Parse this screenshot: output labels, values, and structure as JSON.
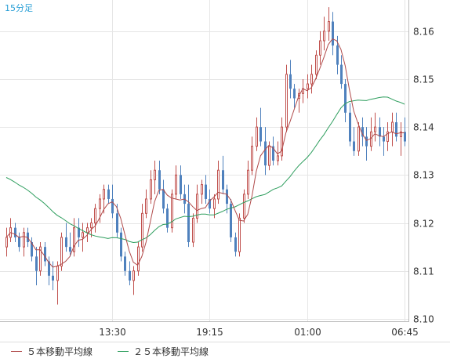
{
  "chart_data": {
    "type": "candlestick",
    "timeframe_label": "15分足",
    "x_tick_labels": [
      "13:30",
      "19:15",
      "01:00",
      "06:45"
    ],
    "y_tick_labels": [
      "8.16",
      "8.15",
      "8.14",
      "8.13",
      "8.12",
      "8.11",
      "8.10"
    ],
    "y_ticks": [
      8.16,
      8.15,
      8.14,
      8.13,
      8.12,
      8.11,
      8.1
    ],
    "ylim": [
      8.0995,
      8.1665
    ],
    "x_ticks": [
      {
        "index": 25,
        "label": "13:30"
      },
      {
        "index": 48,
        "label": "19:15"
      },
      {
        "index": 71,
        "label": "01:00"
      },
      {
        "index": 94,
        "label": "06:45"
      }
    ],
    "grid": true,
    "legend_position": "bottom",
    "colors": {
      "up": "#c0504d",
      "down": "#4f81bd",
      "ma5": "#b04a4a",
      "ma25": "#2e9e5e",
      "grid": "#e6e6e6",
      "axis": "#bbbbbb"
    },
    "series": [
      {
        "name": "5本移動平均線",
        "kind": "sma",
        "period": 5,
        "color": "#b04a4a"
      },
      {
        "name": "25本移動平均線",
        "kind": "sma",
        "period": 25,
        "color": "#2e9e5e"
      }
    ],
    "legend": [
      {
        "label": "５本移動平均線",
        "color": "#b04a4a"
      },
      {
        "label": "２５本移動平均線",
        "color": "#2e9e5e"
      }
    ],
    "ma25_start": 8.13,
    "candles": [
      [
        8.115,
        8.119,
        8.113,
        8.117
      ],
      [
        8.117,
        8.121,
        8.116,
        8.119
      ],
      [
        8.119,
        8.12,
        8.116,
        8.117
      ],
      [
        8.117,
        8.118,
        8.114,
        8.115
      ],
      [
        8.115,
        8.119,
        8.113,
        8.118
      ],
      [
        8.118,
        8.119,
        8.115,
        8.116
      ],
      [
        8.116,
        8.117,
        8.112,
        8.113
      ],
      [
        8.113,
        8.115,
        8.107,
        8.11
      ],
      [
        8.11,
        8.116,
        8.109,
        8.115
      ],
      [
        8.115,
        8.116,
        8.111,
        8.112
      ],
      [
        8.112,
        8.113,
        8.107,
        8.109
      ],
      [
        8.109,
        8.112,
        8.106,
        8.108
      ],
      [
        8.108,
        8.112,
        8.103,
        8.111
      ],
      [
        8.111,
        8.118,
        8.11,
        8.117
      ],
      [
        8.117,
        8.12,
        8.114,
        8.115
      ],
      [
        8.115,
        8.118,
        8.113,
        8.114
      ],
      [
        8.114,
        8.121,
        8.113,
        8.119
      ],
      [
        8.119,
        8.121,
        8.115,
        8.117
      ],
      [
        8.117,
        8.12,
        8.114,
        8.118
      ],
      [
        8.118,
        8.12,
        8.116,
        8.119
      ],
      [
        8.119,
        8.121,
        8.117,
        8.12
      ],
      [
        8.12,
        8.124,
        8.118,
        8.123
      ],
      [
        8.123,
        8.126,
        8.12,
        8.125
      ],
      [
        8.125,
        8.128,
        8.122,
        8.127
      ],
      [
        8.127,
        8.128,
        8.124,
        8.125
      ],
      [
        8.125,
        8.128,
        8.121,
        8.122
      ],
      [
        8.122,
        8.124,
        8.117,
        8.118
      ],
      [
        8.118,
        8.119,
        8.112,
        8.113
      ],
      [
        8.113,
        8.114,
        8.109,
        8.11
      ],
      [
        8.11,
        8.112,
        8.107,
        8.108
      ],
      [
        8.108,
        8.111,
        8.105,
        8.11
      ],
      [
        8.11,
        8.116,
        8.109,
        8.115
      ],
      [
        8.115,
        8.124,
        8.114,
        8.122
      ],
      [
        8.122,
        8.127,
        8.121,
        8.125
      ],
      [
        8.125,
        8.131,
        8.124,
        8.129
      ],
      [
        8.129,
        8.133,
        8.126,
        8.131
      ],
      [
        8.131,
        8.133,
        8.126,
        8.127
      ],
      [
        8.127,
        8.129,
        8.122,
        8.123
      ],
      [
        8.123,
        8.124,
        8.118,
        8.119
      ],
      [
        8.119,
        8.127,
        8.118,
        8.126
      ],
      [
        8.126,
        8.132,
        8.125,
        8.13
      ],
      [
        8.13,
        8.132,
        8.125,
        8.126
      ],
      [
        8.126,
        8.128,
        8.122,
        8.124
      ],
      [
        8.124,
        8.128,
        8.115,
        8.116
      ],
      [
        8.116,
        8.122,
        8.115,
        8.121
      ],
      [
        8.121,
        8.128,
        8.12,
        8.126
      ],
      [
        8.126,
        8.129,
        8.124,
        8.128
      ],
      [
        8.128,
        8.13,
        8.124,
        8.125
      ],
      [
        8.125,
        8.127,
        8.122,
        8.123
      ],
      [
        8.123,
        8.126,
        8.121,
        8.125
      ],
      [
        8.125,
        8.133,
        8.124,
        8.131
      ],
      [
        8.131,
        8.134,
        8.126,
        8.127
      ],
      [
        8.127,
        8.128,
        8.122,
        8.124
      ],
      [
        8.124,
        8.125,
        8.116,
        8.117
      ],
      [
        8.117,
        8.118,
        8.113,
        8.114
      ],
      [
        8.114,
        8.122,
        8.113,
        8.121
      ],
      [
        8.121,
        8.127,
        8.12,
        8.126
      ],
      [
        8.126,
        8.133,
        8.125,
        8.131
      ],
      [
        8.131,
        8.138,
        8.13,
        8.136
      ],
      [
        8.136,
        8.142,
        8.135,
        8.14
      ],
      [
        8.14,
        8.144,
        8.136,
        8.137
      ],
      [
        8.137,
        8.14,
        8.13,
        8.132
      ],
      [
        8.132,
        8.137,
        8.131,
        8.136
      ],
      [
        8.136,
        8.138,
        8.132,
        8.133
      ],
      [
        8.133,
        8.137,
        8.132,
        8.134
      ],
      [
        8.134,
        8.142,
        8.133,
        8.14
      ],
      [
        8.14,
        8.153,
        8.139,
        8.151
      ],
      [
        8.151,
        8.154,
        8.146,
        8.148
      ],
      [
        8.148,
        8.149,
        8.144,
        8.146
      ],
      [
        8.146,
        8.148,
        8.143,
        8.147
      ],
      [
        8.147,
        8.15,
        8.145,
        8.148
      ],
      [
        8.148,
        8.151,
        8.146,
        8.149
      ],
      [
        8.149,
        8.153,
        8.147,
        8.151
      ],
      [
        8.151,
        8.156,
        8.15,
        8.155
      ],
      [
        8.155,
        8.16,
        8.153,
        8.158
      ],
      [
        8.158,
        8.163,
        8.156,
        8.16
      ],
      [
        8.16,
        8.165,
        8.158,
        8.162
      ],
      [
        8.162,
        8.164,
        8.155,
        8.157
      ],
      [
        8.157,
        8.159,
        8.151,
        8.153
      ],
      [
        8.153,
        8.155,
        8.148,
        8.149
      ],
      [
        8.149,
        8.15,
        8.141,
        8.143
      ],
      [
        8.143,
        8.145,
        8.136,
        8.137
      ],
      [
        8.137,
        8.14,
        8.134,
        8.135
      ],
      [
        8.135,
        8.141,
        8.134,
        8.14
      ],
      [
        8.14,
        8.142,
        8.136,
        8.138
      ],
      [
        8.138,
        8.14,
        8.133,
        8.136
      ],
      [
        8.136,
        8.142,
        8.135,
        8.139
      ],
      [
        8.139,
        8.143,
        8.137,
        8.14
      ],
      [
        8.14,
        8.142,
        8.136,
        8.138
      ],
      [
        8.138,
        8.14,
        8.134,
        8.137
      ],
      [
        8.137,
        8.141,
        8.135,
        8.139
      ],
      [
        8.139,
        8.143,
        8.136,
        8.141
      ],
      [
        8.141,
        8.143,
        8.137,
        8.138
      ],
      [
        8.138,
        8.141,
        8.134,
        8.139
      ],
      [
        8.139,
        8.142,
        8.136,
        8.137
      ]
    ]
  }
}
